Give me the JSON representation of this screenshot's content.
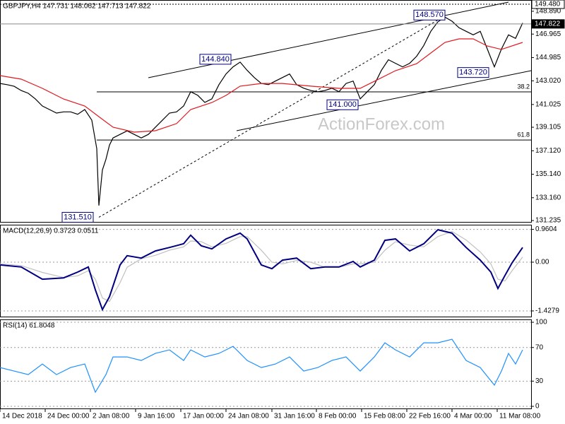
{
  "chart_data": [
    {
      "type": "line",
      "title": "GBPJPY,H4  147.731 148.062 147.713 147.822",
      "watermark": "ActionForex.com",
      "xlim": [
        0,
        752
      ],
      "ylim": [
        131.12,
        149.84
      ],
      "grid": false,
      "yticks": [
        {
          "value": 148.89,
          "label": "148.890"
        },
        146.965,
        144.985,
        {
          "value": 143.02,
          "label": "143.020"
        },
        141.025,
        139.105,
        {
          "value": 137.12,
          "label": "137.120"
        },
        {
          "value": 135.14,
          "label": "135.140"
        },
        {
          "value": 133.16,
          "label": "133.160"
        },
        131.235
      ],
      "series": [
        {
          "color": "#000000",
          "x": [
            0,
            10,
            20,
            30,
            40,
            50,
            60,
            70,
            80,
            90,
            100,
            110,
            120,
            130,
            137,
            140,
            145,
            150,
            155,
            160,
            170,
            180,
            190,
            200,
            210,
            220,
            230,
            240,
            250,
            260,
            270,
            280,
            290,
            300,
            310,
            320,
            330,
            340,
            350,
            360,
            370,
            380,
            390,
            400,
            410,
            420,
            430,
            440,
            450,
            460,
            470,
            480,
            490,
            500,
            510,
            520,
            530,
            540,
            550,
            560,
            570,
            580,
            590,
            600,
            610,
            620,
            630,
            640,
            650,
            660,
            670,
            680,
            690,
            700,
            710,
            720,
            730,
            740
          ],
          "values": [
            142.8,
            142.7,
            142.56,
            142.2,
            141.97,
            141.5,
            140.9,
            140.6,
            140.3,
            140.4,
            140.4,
            140.2,
            140.6,
            139.7,
            137.3,
            132.5,
            135.5,
            136.4,
            137.6,
            138.2,
            138.5,
            138.8,
            138.5,
            138.2,
            138.5,
            139.1,
            139.7,
            140.3,
            140.4,
            140.9,
            142.1,
            141.8,
            141.2,
            141.5,
            142.7,
            143.6,
            144.2,
            144.6,
            143.9,
            143.3,
            142.8,
            142.7,
            143.0,
            143.3,
            143.6,
            142.7,
            142.4,
            142.2,
            142.1,
            142.2,
            142.4,
            142.1,
            142.8,
            143.0,
            141.5,
            142.1,
            142.7,
            143.9,
            144.8,
            144.5,
            144.2,
            144.5,
            145.1,
            146.0,
            147.2,
            148.0,
            148.4,
            148.05,
            147.5,
            147.2,
            146.9,
            147.2,
            145.7,
            144.2,
            145.7,
            146.9,
            146.6,
            147.9
          ]
        },
        {
          "color": "#e0191f",
          "x": [
            0,
            30,
            60,
            90,
            120,
            140,
            160,
            190,
            220,
            250,
            270,
            300,
            320,
            340,
            370,
            400,
            440,
            480,
            510,
            530,
            560,
            590,
            610,
            630,
            650,
            670,
            690,
            710,
            740
          ],
          "values": [
            143.46,
            143.16,
            142.39,
            141.49,
            140.9,
            140.0,
            139.11,
            138.69,
            138.81,
            139.41,
            140.6,
            141.19,
            141.79,
            142.57,
            142.8,
            142.8,
            142.57,
            142.39,
            142.39,
            142.98,
            143.88,
            144.47,
            145.37,
            146.26,
            146.56,
            146.56,
            145.96,
            145.67,
            146.26
          ]
        }
      ],
      "levels": [
        {
          "value": 142.09,
          "label": "38.2"
        },
        {
          "value": 138.03,
          "label": "61.8"
        }
      ],
      "trendlines": [
        {
          "style": "dashed",
          "x": [
            140,
            632
          ],
          "y": [
            131.51,
            148.57
          ]
        },
        {
          "style": "solid",
          "x": [
            210,
            720
          ],
          "y": [
            143.28,
            149.66
          ]
        },
        {
          "style": "solid",
          "x": [
            335,
            752
          ],
          "y": [
            138.81,
            143.88
          ]
        }
      ],
      "markers": [
        {
          "value": 149.48,
          "label": "149.480",
          "style": "dotted"
        },
        {
          "value": 147.822,
          "label": "147.822",
          "style": "current"
        }
      ],
      "annotations": [
        {
          "x": 110,
          "value": 131.51,
          "label": "131.510"
        },
        {
          "x": 305,
          "value": 144.84,
          "label": "144.840"
        },
        {
          "x": 608,
          "value": 148.57,
          "label": "148.570"
        },
        {
          "x": 485,
          "value": 141.0,
          "label": "141.000"
        },
        {
          "x": 670,
          "value": 143.72,
          "label": "143.720"
        }
      ]
    },
    {
      "type": "line",
      "title": "MACD(12,26,9) 0.3723 0.0511",
      "xlim": [
        0,
        752
      ],
      "ylim": [
        -1.594,
        1.097
      ],
      "grid": true,
      "yticks": [
        0.9604,
        {
          "value": 0,
          "label": "0.00"
        },
        -1.4279
      ],
      "series": [
        {
          "color": "#c0c0c0",
          "x": [
            0,
            30,
            60,
            90,
            110,
            125,
            135,
            145,
            155,
            170,
            180,
            200,
            220,
            240,
            260,
            270,
            285,
            300,
            320,
            340,
            350,
            370,
            385,
            400,
            420,
            440,
            460,
            480,
            500,
            510,
            530,
            545,
            560,
            580,
            600,
            620,
            640,
            660,
            680,
            695,
            705,
            715,
            725,
            740
          ],
          "values": [
            -0.05,
            -0.1,
            -0.3,
            -0.45,
            -0.4,
            -0.25,
            -0.5,
            -1.05,
            -1.15,
            -0.6,
            -0.15,
            0.1,
            0.2,
            0.35,
            0.45,
            0.62,
            0.6,
            0.45,
            0.55,
            0.75,
            0.75,
            0.35,
            0.0,
            -0.05,
            0.05,
            0.0,
            -0.15,
            -0.15,
            -0.05,
            -0.05,
            0.0,
            0.35,
            0.6,
            0.5,
            0.45,
            0.75,
            0.9,
            0.65,
            0.3,
            -0.05,
            -0.5,
            -0.55,
            -0.25,
            0.15
          ]
        },
        {
          "color": "#000080",
          "x": [
            0,
            30,
            60,
            90,
            110,
            125,
            135,
            145,
            155,
            170,
            180,
            200,
            220,
            240,
            260,
            270,
            285,
            300,
            320,
            340,
            350,
            370,
            385,
            400,
            420,
            440,
            460,
            480,
            500,
            510,
            530,
            545,
            560,
            580,
            600,
            620,
            640,
            660,
            680,
            695,
            705,
            715,
            725,
            740
          ],
          "values": [
            -0.08,
            -0.14,
            -0.5,
            -0.46,
            -0.29,
            -0.14,
            -0.81,
            -1.39,
            -1.01,
            -0.08,
            0.19,
            0.12,
            0.33,
            0.43,
            0.54,
            0.79,
            0.48,
            0.39,
            0.68,
            0.85,
            0.68,
            -0.08,
            -0.19,
            0.06,
            0.12,
            -0.19,
            -0.14,
            -0.14,
            0.02,
            -0.14,
            0.06,
            0.64,
            0.68,
            0.33,
            0.54,
            0.95,
            0.85,
            0.43,
            0.06,
            -0.29,
            -0.77,
            -0.39,
            -0.02,
            0.43
          ]
        }
      ]
    },
    {
      "type": "line",
      "title": "RSI(14) 61.8048",
      "xlim": [
        0,
        752
      ],
      "ylim": [
        -2.5,
        103.4
      ],
      "grid": true,
      "yticks": [
        100,
        70,
        30,
        0
      ],
      "xticks": [
        {
          "value": 0,
          "label": "14 Dec 2018"
        },
        {
          "value": 64,
          "label": "24 Dec 00:00"
        },
        {
          "value": 128,
          "label": "2 Jan 08:00"
        },
        {
          "value": 192,
          "label": "9 Jan 16:00"
        },
        {
          "value": 256,
          "label": "17 Jan 00:00"
        },
        {
          "value": 320,
          "label": "24 Jan 08:00"
        },
        {
          "value": 385,
          "label": "31 Jan 16:00"
        },
        {
          "value": 448,
          "label": "8 Feb 00:00"
        },
        {
          "value": 512,
          "label": "15 Feb 08:00"
        },
        {
          "value": 576,
          "label": "22 Feb 16:00"
        },
        {
          "value": 640,
          "label": "4 Mar 00:00"
        },
        {
          "value": 704,
          "label": "11 Mar 08:00"
        }
      ],
      "series": [
        {
          "color": "#1e90ff",
          "x": [
            0,
            20,
            40,
            60,
            80,
            100,
            120,
            135,
            150,
            160,
            180,
            200,
            220,
            240,
            260,
            270,
            290,
            310,
            330,
            350,
            370,
            390,
            410,
            430,
            450,
            470,
            490,
            510,
            530,
            545,
            560,
            580,
            600,
            620,
            640,
            660,
            680,
            700,
            710,
            720,
            730,
            740
          ],
          "values": [
            46.2,
            42,
            37.8,
            50.4,
            37.8,
            46.2,
            50.4,
            16.8,
            37.8,
            58.8,
            58.8,
            54.6,
            63,
            67.2,
            54.6,
            67.2,
            58.8,
            63,
            71.4,
            54.6,
            46.2,
            50.4,
            58.8,
            42,
            46.2,
            54.6,
            58.8,
            42,
            58.8,
            75.6,
            67.2,
            58.8,
            75.6,
            75.6,
            79.8,
            54.6,
            46.2,
            25.2,
            42,
            63,
            50.4,
            67.2
          ]
        }
      ]
    }
  ]
}
